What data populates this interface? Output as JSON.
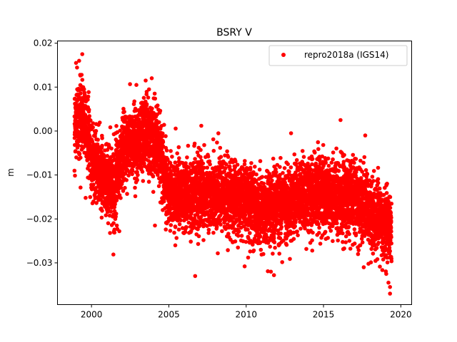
{
  "chart_data": {
    "type": "scatter",
    "title": "BSRY V",
    "xlabel": "",
    "ylabel": "m",
    "xlim": [
      1997.8,
      2020.7
    ],
    "ylim": [
      -0.0395,
      0.0205
    ],
    "xticks": [
      2000,
      2005,
      2010,
      2015,
      2020
    ],
    "xtick_labels": [
      "2000",
      "2005",
      "2010",
      "2015",
      "2020"
    ],
    "yticks": [
      0.02,
      0.01,
      0.0,
      -0.01,
      -0.02,
      -0.03
    ],
    "ytick_labels": [
      "0.02",
      "0.01",
      "0.00",
      "−0.01",
      "−0.02",
      "−0.03"
    ],
    "grid": false,
    "legend": {
      "placement": "top-right"
    },
    "series": [
      {
        "name": "repro2018a (IGS14)",
        "color": "#ff0000",
        "marker": "circle",
        "trend_profile": {
          "x": [
            1998.9,
            1999.5,
            2000.0,
            2000.5,
            2001.0,
            2001.5,
            2002.0,
            2002.5,
            2003.0,
            2003.5,
            2004.0,
            2004.5,
            2005.0,
            2006.0,
            2007.0,
            2008.0,
            2009.0,
            2010.0,
            2011.0,
            2012.0,
            2013.0,
            2014.0,
            2015.0,
            2016.0,
            2017.0,
            2018.0,
            2019.0,
            2019.4
          ],
          "y": [
            0.002,
            0.004,
            -0.006,
            -0.009,
            -0.011,
            -0.013,
            -0.005,
            -0.003,
            -0.002,
            0.0,
            -0.001,
            -0.006,
            -0.014,
            -0.015,
            -0.014,
            -0.015,
            -0.015,
            -0.016,
            -0.019,
            -0.017,
            -0.016,
            -0.015,
            -0.014,
            -0.015,
            -0.015,
            -0.018,
            -0.021,
            -0.022
          ]
        },
        "scatter_sd": 0.004,
        "n_points": 6800,
        "extremes": [
          [
            1999.4,
            0.0175
          ],
          [
            1999.2,
            0.016
          ],
          [
            1999.0,
            0.0155
          ],
          [
            2003.5,
            0.0115
          ],
          [
            2002.9,
            0.0105
          ],
          [
            2006.7,
            -0.033
          ],
          [
            2011.8,
            -0.0328
          ],
          [
            2011.6,
            -0.032
          ],
          [
            2009.9,
            -0.0308
          ],
          [
            2019.3,
            -0.037
          ],
          [
            2019.3,
            -0.0355
          ],
          [
            2019.2,
            -0.0345
          ],
          [
            2017.6,
            -0.031
          ],
          [
            2016.1,
            0.0025
          ],
          [
            2017.7,
            -0.001
          ],
          [
            2012.9,
            -0.0005
          ],
          [
            2007.1,
            0.0012
          ],
          [
            2001.2,
            -0.0232
          ],
          [
            2001.8,
            -0.0228
          ],
          [
            2004.1,
            -0.0215
          ]
        ]
      }
    ]
  }
}
